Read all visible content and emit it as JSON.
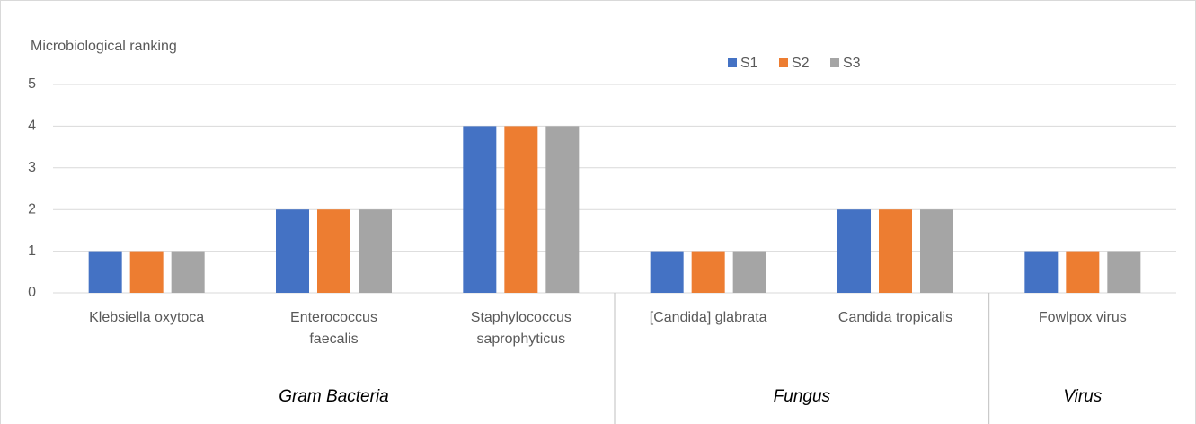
{
  "chart_data": {
    "type": "bar",
    "y_axis_title": "Microbiological ranking",
    "categories": [
      "Klebsiella oxytoca",
      "Enterococcus\nfaecalis",
      "Staphylococcus\nsaprophyticus",
      "[Candida] glabrata",
      "Candida tropicalis",
      "Fowlpox virus"
    ],
    "category_groups": [
      {
        "label": "Gram Bacteria",
        "count": 3
      },
      {
        "label": "Fungus",
        "count": 2
      },
      {
        "label": "Virus",
        "count": 1
      }
    ],
    "series": [
      {
        "name": "S1",
        "color": "#4472c4",
        "values": [
          1,
          2,
          4,
          1,
          2,
          1
        ]
      },
      {
        "name": "S2",
        "color": "#ed7d31",
        "values": [
          1,
          2,
          4,
          1,
          2,
          1
        ]
      },
      {
        "name": "S3",
        "color": "#a5a5a5",
        "values": [
          1,
          2,
          4,
          1,
          2,
          1
        ]
      }
    ],
    "ylim": [
      0,
      5
    ],
    "yticks": [
      0,
      1,
      2,
      3,
      4,
      5
    ],
    "grid": true,
    "legend": "top"
  }
}
